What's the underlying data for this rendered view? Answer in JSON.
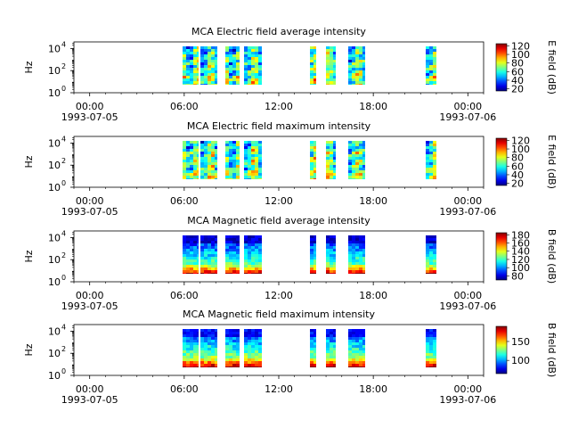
{
  "chart_data": [
    {
      "type": "heatmap",
      "title": "MCA  Electric field average intensity",
      "ylabel": "Hz",
      "colorbar_label": "E field (dB)",
      "colorbar_ticks": [
        "120",
        "100",
        "80",
        "60",
        "40",
        "20"
      ],
      "colorbar_range": [
        15,
        125
      ],
      "y_ticks": [
        "10",
        "10",
        "10"
      ],
      "y_exps": [
        "4",
        "2",
        "0"
      ],
      "x_ticks": [
        "00:00",
        "06:00",
        "12:00",
        "18:00",
        "00:00"
      ],
      "x_dates": [
        "1993-07-05",
        "",
        "",
        "",
        "1993-07-06"
      ],
      "xlim_hours": [
        -1,
        25
      ],
      "ylim_log10_hz": [
        0,
        4.6
      ],
      "data_blocks_hours": [
        [
          5.9,
          6.9
        ],
        [
          7.0,
          8.1
        ],
        [
          8.6,
          9.5
        ],
        [
          9.8,
          10.9
        ],
        [
          14.0,
          14.4
        ],
        [
          15.0,
          15.6
        ],
        [
          16.4,
          17.5
        ],
        [
          21.3,
          22.0
        ],
        [
          25.85,
          25.95
        ]
      ],
      "freq_range_log10_hz": [
        0.7,
        4.2
      ]
    },
    {
      "type": "heatmap",
      "title": "MCA  Electric field maximum intensity",
      "ylabel": "Hz",
      "colorbar_label": "E field (dB)",
      "colorbar_ticks": [
        "120",
        "100",
        "80",
        "60",
        "40",
        "20"
      ],
      "colorbar_range": [
        15,
        125
      ],
      "y_ticks": [
        "10",
        "10",
        "10"
      ],
      "y_exps": [
        "4",
        "2",
        "0"
      ],
      "x_ticks": [
        "00:00",
        "06:00",
        "12:00",
        "18:00",
        "00:00"
      ],
      "x_dates": [
        "1993-07-05",
        "",
        "",
        "",
        "1993-07-06"
      ],
      "xlim_hours": [
        -1,
        25
      ],
      "ylim_log10_hz": [
        0,
        4.6
      ],
      "data_blocks_hours": [
        [
          5.9,
          6.9
        ],
        [
          7.0,
          8.1
        ],
        [
          8.6,
          9.5
        ],
        [
          9.8,
          10.9
        ],
        [
          14.0,
          14.4
        ],
        [
          15.0,
          15.6
        ],
        [
          16.4,
          17.5
        ],
        [
          21.3,
          22.0
        ],
        [
          25.85,
          25.95
        ]
      ],
      "freq_range_log10_hz": [
        0.7,
        4.2
      ]
    },
    {
      "type": "heatmap",
      "title": "MCA  Magnetic field average intensity",
      "ylabel": "Hz",
      "colorbar_label": "B field (dB)",
      "colorbar_ticks": [
        "180",
        "160",
        "140",
        "120",
        "100",
        "80"
      ],
      "colorbar_range": [
        70,
        185
      ],
      "y_ticks": [
        "10",
        "10",
        "10"
      ],
      "y_exps": [
        "4",
        "2",
        "0"
      ],
      "x_ticks": [
        "00:00",
        "06:00",
        "12:00",
        "18:00",
        "00:00"
      ],
      "x_dates": [
        "1993-07-05",
        "",
        "",
        "",
        "1993-07-06"
      ],
      "xlim_hours": [
        -1,
        25
      ],
      "ylim_log10_hz": [
        0,
        4.6
      ],
      "data_blocks_hours": [
        [
          5.9,
          6.9
        ],
        [
          7.0,
          8.1
        ],
        [
          8.6,
          9.5
        ],
        [
          9.8,
          10.9
        ],
        [
          14.0,
          14.4
        ],
        [
          15.0,
          15.6
        ],
        [
          16.4,
          17.5
        ],
        [
          21.3,
          22.0
        ],
        [
          25.85,
          25.95
        ]
      ],
      "freq_range_log10_hz": [
        0.7,
        4.2
      ]
    },
    {
      "type": "heatmap",
      "title": "MCA  Magnetic field maximum intensity",
      "ylabel": "Hz",
      "colorbar_label": "B field (dB)",
      "colorbar_ticks": [
        "150",
        "100"
      ],
      "colorbar_range": [
        65,
        190
      ],
      "y_ticks": [
        "10",
        "10",
        "10"
      ],
      "y_exps": [
        "4",
        "2",
        "0"
      ],
      "x_ticks": [
        "00:00",
        "06:00",
        "12:00",
        "18:00",
        "00:00"
      ],
      "x_dates": [
        "1993-07-05",
        "",
        "",
        "",
        "1993-07-06"
      ],
      "xlim_hours": [
        -1,
        25
      ],
      "ylim_log10_hz": [
        0,
        4.6
      ],
      "data_blocks_hours": [
        [
          5.9,
          6.9
        ],
        [
          7.0,
          8.1
        ],
        [
          8.6,
          9.5
        ],
        [
          9.8,
          10.9
        ],
        [
          14.0,
          14.4
        ],
        [
          15.0,
          15.6
        ],
        [
          16.4,
          17.5
        ],
        [
          21.3,
          22.0
        ],
        [
          25.85,
          25.95
        ]
      ],
      "freq_range_log10_hz": [
        0.7,
        4.2
      ]
    }
  ]
}
